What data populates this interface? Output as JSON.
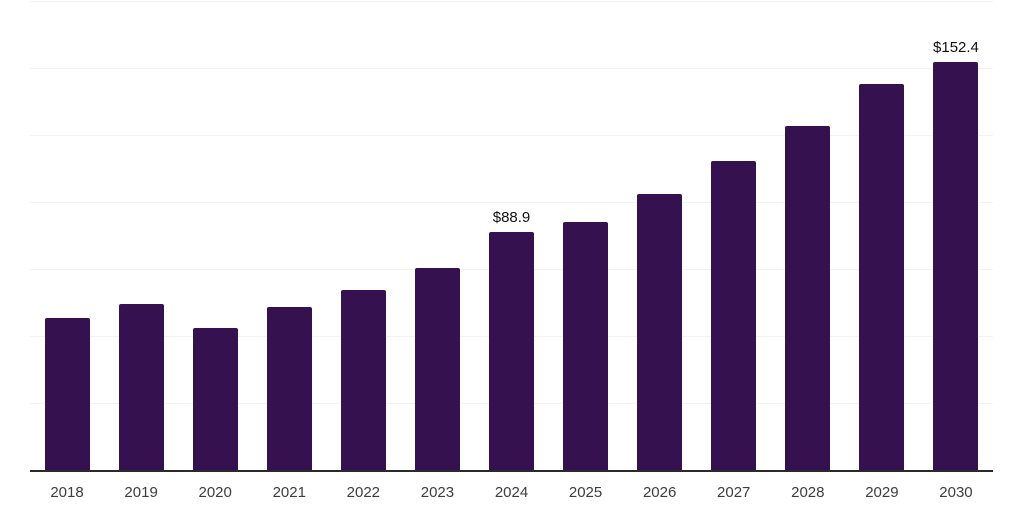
{
  "chart": {
    "background": "#ffffff",
    "bar_color": "#36114F",
    "axis_line_color": "#2b2b2b",
    "gridline_color": "#f2f2f2",
    "value_label_color": "#111111",
    "tick_label_color": "#3d3d3d"
  },
  "chart_data": {
    "type": "bar",
    "title": "",
    "xlabel": "",
    "ylabel": "",
    "categories": [
      "2018",
      "2019",
      "2020",
      "2021",
      "2022",
      "2023",
      "2024",
      "2025",
      "2026",
      "2027",
      "2028",
      "2029",
      "2030"
    ],
    "values": [
      56.8,
      61.9,
      52.8,
      61.0,
      67.2,
      75.3,
      88.9,
      92.4,
      103.0,
      115.2,
      128.3,
      144.0,
      152.4
    ],
    "data_labels": [
      null,
      null,
      null,
      null,
      null,
      null,
      "$88.9",
      null,
      null,
      null,
      null,
      null,
      "$152.4"
    ],
    "ylim": [
      0,
      175
    ],
    "gridline_step": 25,
    "grid": true,
    "legend_position": "none"
  }
}
